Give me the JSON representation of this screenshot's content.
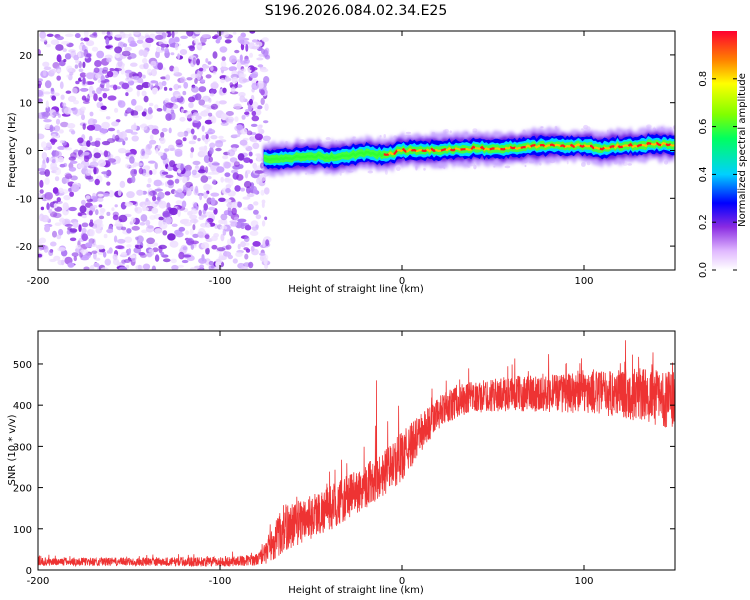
{
  "figure": {
    "title": "S196.2026.084.02.34.E25"
  },
  "chart_data": [
    {
      "type": "heatmap",
      "name": "spectrogram",
      "xlabel": "Height of straight line (km)",
      "ylabel": "Frequency (Hz)",
      "xlim": [
        -200,
        150
      ],
      "ylim": [
        -25,
        25
      ],
      "xticks": [
        -200,
        -100,
        0,
        100
      ],
      "yticks": [
        -20,
        -10,
        0,
        10,
        20
      ],
      "colorbar": {
        "label": "Normalized spectral amplitude",
        "range": [
          0,
          1
        ],
        "ticks": [
          0.0,
          0.2,
          0.4,
          0.6,
          0.8
        ],
        "tick_labels": [
          "0.0",
          "0.2",
          "0.4",
          "0.6",
          "0.8"
        ]
      },
      "noise_region_x": [
        -200,
        -76
      ],
      "signal_trace": {
        "x": [
          -76,
          -70,
          -60,
          -50,
          -40,
          -30,
          -20,
          -10,
          0,
          10,
          20,
          30,
          40,
          50,
          60,
          70,
          80,
          90,
          100,
          110,
          120,
          130,
          140,
          150
        ],
        "y": [
          -1.5,
          -2,
          -1.5,
          -1,
          -1.5,
          -1,
          -0.5,
          -1,
          0,
          0,
          0,
          0.3,
          0.5,
          0.3,
          0.5,
          0.8,
          1,
          1,
          1,
          0.5,
          1,
          1,
          1.5,
          1
        ]
      }
    },
    {
      "type": "line",
      "name": "snr",
      "xlabel": "Height of straight line (km)",
      "ylabel": "SNR (10 * v/v)",
      "xlim": [
        -200,
        150
      ],
      "ylim": [
        0,
        580
      ],
      "xticks": [
        -200,
        -100,
        0,
        100
      ],
      "yticks": [
        0,
        100,
        200,
        300,
        400,
        500
      ],
      "series": [
        {
          "name": "SNR",
          "color": "#ee3333",
          "envelope_x": [
            -200,
            -150,
            -100,
            -90,
            -80,
            -75,
            -70,
            -65,
            -60,
            -55,
            -50,
            -40,
            -30,
            -20,
            -10,
            0,
            10,
            20,
            30,
            50,
            70,
            100,
            120,
            140,
            150
          ],
          "envelope_mean": [
            20,
            20,
            20,
            22,
            25,
            40,
            70,
            100,
            110,
            120,
            130,
            150,
            175,
            205,
            235,
            275,
            330,
            380,
            410,
            425,
            430,
            430,
            430,
            420,
            410
          ],
          "envelope_spread": [
            10,
            10,
            12,
            12,
            14,
            25,
            45,
            60,
            55,
            55,
            55,
            55,
            55,
            55,
            55,
            60,
            50,
            40,
            40,
            40,
            45,
            50,
            60,
            70,
            70
          ],
          "spikes": [
            {
              "x": -14,
              "y": 460
            },
            {
              "x": -14.6,
              "y": 350
            }
          ]
        }
      ]
    }
  ]
}
